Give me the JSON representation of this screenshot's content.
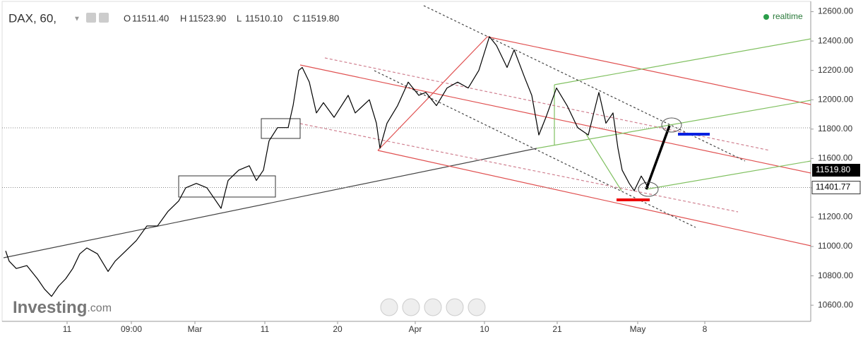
{
  "chart_data": {
    "type": "line",
    "title": "DAX, 60,",
    "ohlc": [
      {
        "key": "O",
        "text": "11511.40"
      },
      {
        "key": "H",
        "text": "11523.90"
      },
      {
        "key": "L",
        "text": "11510.10"
      },
      {
        "key": "C",
        "text": "11519.80"
      }
    ],
    "status": "realtime",
    "logo": {
      "main": "Investing",
      "suffix": ".com"
    },
    "series": [
      {
        "name": "DAX",
        "color": "#000000",
        "x": [
          5,
          10,
          20,
          35,
          50,
          60,
          70,
          80,
          90,
          100,
          110,
          120,
          135,
          150,
          160,
          175,
          190,
          205,
          220,
          235,
          250,
          260,
          275,
          290,
          300,
          310,
          320,
          335,
          350,
          360,
          370,
          378,
          390,
          405,
          412,
          420,
          425,
          435,
          445,
          455,
          470,
          490,
          500,
          520,
          530,
          535,
          545,
          560,
          575,
          590,
          600,
          615,
          630,
          645,
          660,
          675,
          690,
          700,
          715,
          725,
          740,
          750,
          760,
          770,
          785,
          800,
          815,
          830,
          845,
          855,
          865,
          872,
          878,
          888,
          895,
          905,
          915
        ],
        "values": [
          10970,
          10900,
          10850,
          10870,
          10780,
          10710,
          10660,
          10730,
          10780,
          10850,
          10950,
          10990,
          10950,
          10830,
          10900,
          10970,
          11040,
          11140,
          11140,
          11240,
          11310,
          11400,
          11430,
          11400,
          11330,
          11260,
          11450,
          11520,
          11550,
          11450,
          11520,
          11720,
          11810,
          11810,
          11960,
          12200,
          12220,
          12120,
          11910,
          11980,
          11880,
          12030,
          11910,
          12000,
          11840,
          11670,
          11840,
          11960,
          12120,
          12030,
          12050,
          11960,
          12080,
          12120,
          12080,
          12200,
          12430,
          12370,
          12220,
          12340,
          12150,
          12030,
          11760,
          11880,
          12080,
          11960,
          11810,
          11760,
          12050,
          11840,
          11910,
          11670,
          11520,
          11430,
          11380,
          11480,
          11400
        ]
      }
    ],
    "last_price": {
      "value": 11519.8,
      "label": "11519.80"
    },
    "level": {
      "value": 11401.77,
      "label": "11401.77"
    },
    "xlim": [
      0,
      1145
    ],
    "xticks": [
      {
        "value": 92,
        "label": "11"
      },
      {
        "value": 183,
        "label": "09:00"
      },
      {
        "value": 273,
        "label": "Mar"
      },
      {
        "value": 372,
        "label": "11"
      },
      {
        "value": 475,
        "label": "20"
      },
      {
        "value": 585,
        "label": "Apr"
      },
      {
        "value": 683,
        "label": "10"
      },
      {
        "value": 786,
        "label": "21"
      },
      {
        "value": 900,
        "label": "May"
      },
      {
        "value": 995,
        "label": "8"
      }
    ],
    "ylim": [
      10490,
      12670
    ],
    "yticks": [
      {
        "value": 10600,
        "label": "10600.00"
      },
      {
        "value": 10800,
        "label": "10800.00"
      },
      {
        "value": 11000,
        "label": "11000.00"
      },
      {
        "value": 11200,
        "label": "11200.00"
      },
      {
        "value": 11400,
        "label": "11400.00"
      },
      {
        "value": 11600,
        "label": "11600.00"
      },
      {
        "value": 11800,
        "label": "11800.00"
      },
      {
        "value": 12000,
        "label": "12000.00"
      },
      {
        "value": 12200,
        "label": "12200.00"
      },
      {
        "value": 12400,
        "label": "12400.00"
      },
      {
        "value": 12600,
        "label": "12600.00"
      }
    ]
  }
}
